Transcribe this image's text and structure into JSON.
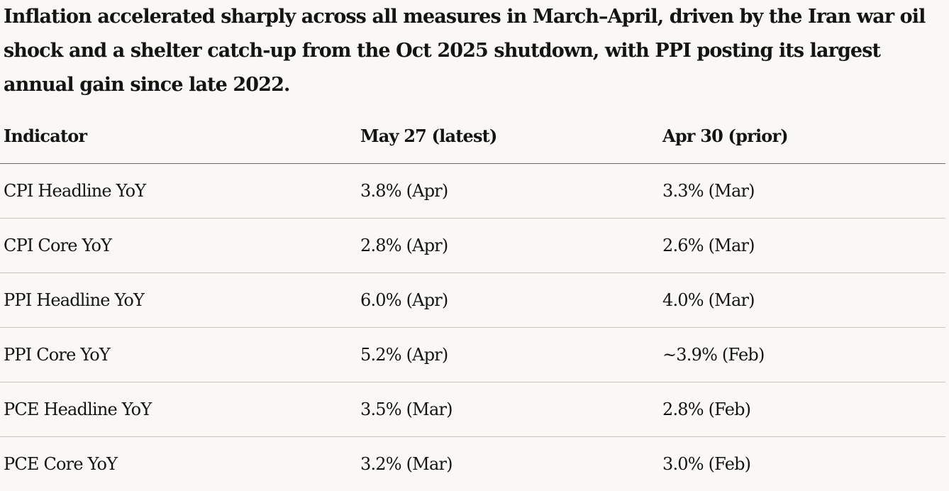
{
  "summary": "Inflation accelerated sharply across all measures in March–April, driven by the Iran war oil shock and a shelter catch-up from the Oct 2025 shutdown, with PPI posting its largest annual gain since late 2022.",
  "table": {
    "headers": [
      "Indicator",
      "May 27 (latest)",
      "Apr 30 (prior)"
    ],
    "rows": [
      [
        "CPI Headline YoY",
        "3.8% (Apr)",
        "3.3% (Mar)"
      ],
      [
        "CPI Core YoY",
        "2.8% (Apr)",
        "2.6% (Mar)"
      ],
      [
        "PPI Headline YoY",
        "6.0% (Apr)",
        "4.0% (Mar)"
      ],
      [
        "PPI Core YoY",
        "5.2% (Apr)",
        "~3.9% (Feb)"
      ],
      [
        "PCE Headline YoY",
        "3.5% (Mar)",
        "2.8% (Feb)"
      ],
      [
        "PCE Core YoY",
        "3.2% (Mar)",
        "3.0% (Feb)"
      ]
    ]
  },
  "colors": {
    "background": "#f9f8f5",
    "text": "#141414",
    "header_rule": "#6b6b6b",
    "row_rule": "#c9c6bf"
  }
}
